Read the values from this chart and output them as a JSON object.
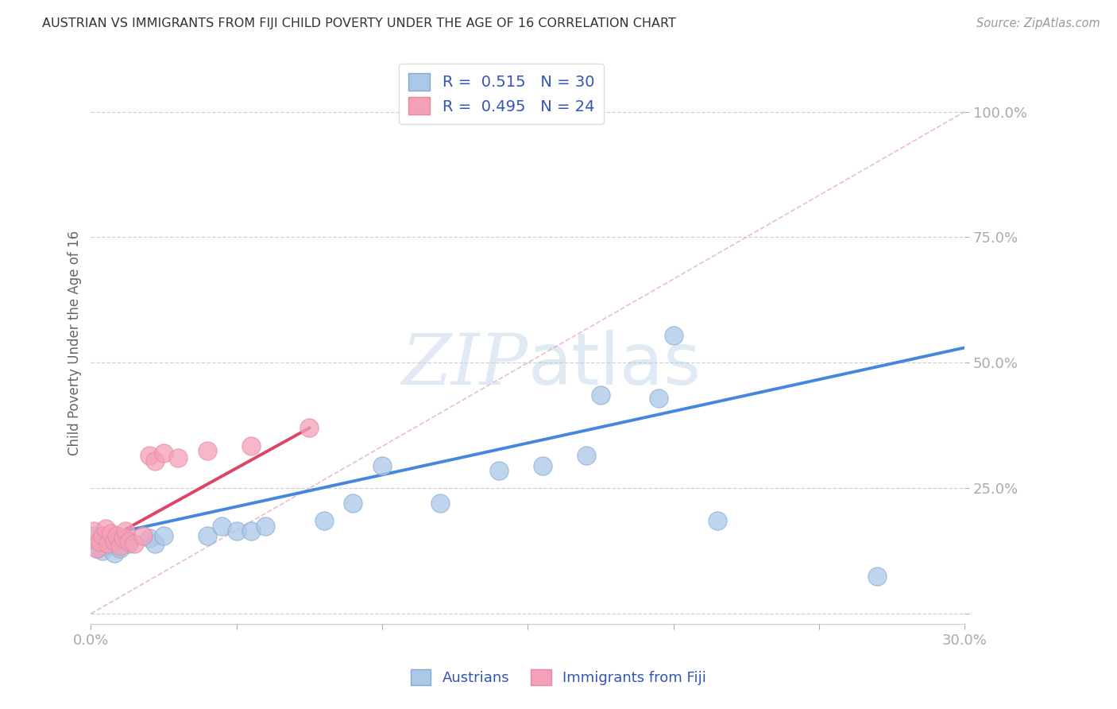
{
  "title": "AUSTRIAN VS IMMIGRANTS FROM FIJI CHILD POVERTY UNDER THE AGE OF 16 CORRELATION CHART",
  "source": "Source: ZipAtlas.com",
  "ylabel": "Child Poverty Under the Age of 16",
  "xlim": [
    0.0,
    0.3
  ],
  "ylim": [
    -0.02,
    1.1
  ],
  "legend_bottom": "Austrians",
  "legend_bottom2": "Immigrants from Fiji",
  "austrian_color": "#aac8e8",
  "fiji_color": "#f4a0b8",
  "austrian_line_color": "#4488dd",
  "fiji_line_color": "#dd4466",
  "diagonal_color": "#e8b8c8",
  "bg_color": "#ffffff",
  "grid_color": "#cccccc",
  "austrians_x": [
    0.001,
    0.002,
    0.003,
    0.004,
    0.005,
    0.006,
    0.007,
    0.008,
    0.01,
    0.013,
    0.02,
    0.022,
    0.025,
    0.04,
    0.045,
    0.05,
    0.055,
    0.06,
    0.08,
    0.09,
    0.1,
    0.12,
    0.14,
    0.155,
    0.17,
    0.175,
    0.195,
    0.2,
    0.215,
    0.27
  ],
  "austrians_y": [
    0.155,
    0.13,
    0.145,
    0.125,
    0.135,
    0.14,
    0.145,
    0.12,
    0.13,
    0.14,
    0.15,
    0.14,
    0.155,
    0.155,
    0.175,
    0.165,
    0.165,
    0.175,
    0.185,
    0.22,
    0.295,
    0.22,
    0.285,
    0.295,
    0.315,
    0.435,
    0.43,
    0.555,
    0.185,
    0.075
  ],
  "fiji_x": [
    0.001,
    0.002,
    0.003,
    0.004,
    0.005,
    0.006,
    0.007,
    0.008,
    0.009,
    0.01,
    0.011,
    0.012,
    0.013,
    0.015,
    0.018,
    0.02,
    0.022,
    0.025,
    0.03,
    0.04,
    0.055,
    0.075
  ],
  "fiji_y": [
    0.165,
    0.13,
    0.145,
    0.155,
    0.17,
    0.14,
    0.16,
    0.145,
    0.155,
    0.135,
    0.15,
    0.165,
    0.145,
    0.14,
    0.155,
    0.315,
    0.305,
    0.32,
    0.31,
    0.325,
    0.335,
    0.37
  ]
}
